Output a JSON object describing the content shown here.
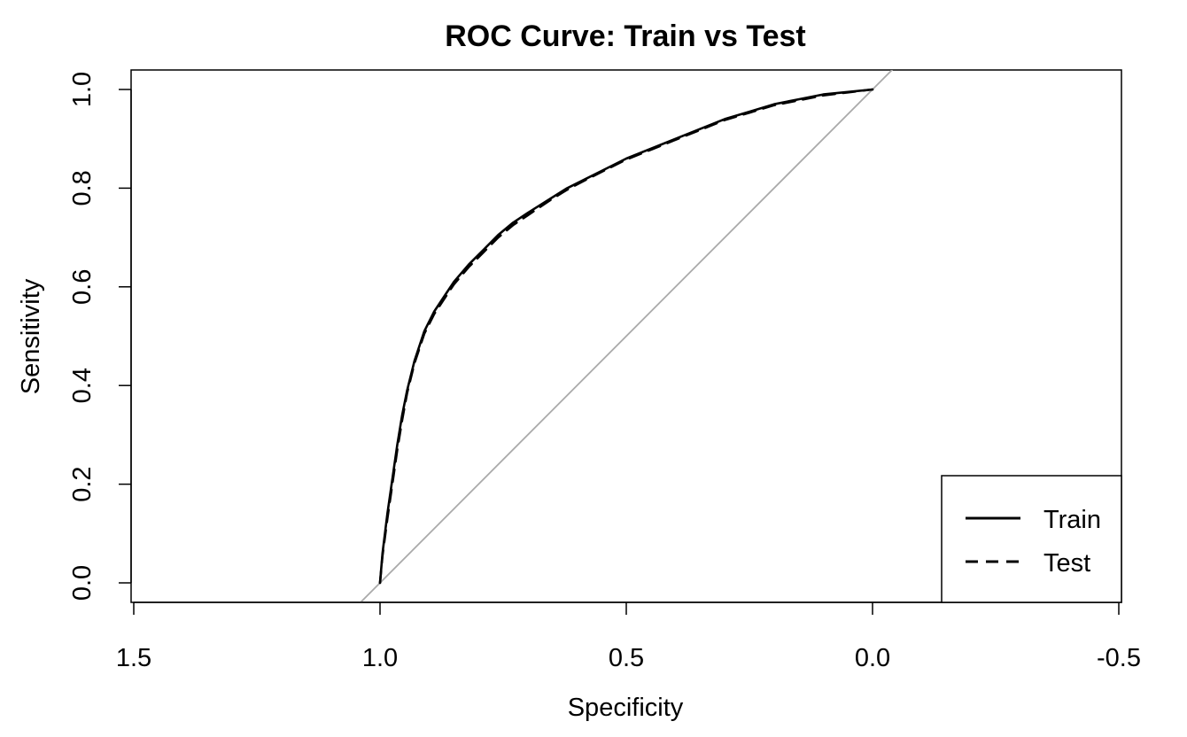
{
  "chart_data": {
    "type": "line",
    "title": "ROC Curve: Train vs Test",
    "xlabel": "Specificity",
    "ylabel": "Sensitivity",
    "xlim": [
      1.5,
      -0.5
    ],
    "ylim": [
      0.0,
      1.0
    ],
    "x_reversed": true,
    "x_ticks": [
      "1.5",
      "1.0",
      "0.5",
      "0.0",
      "-0.5"
    ],
    "y_ticks": [
      "0.0",
      "0.2",
      "0.4",
      "0.6",
      "0.8",
      "1.0"
    ],
    "grid": false,
    "legend_position": "bottom-right",
    "reference_line": {
      "from": [
        1.0,
        0.0
      ],
      "to": [
        0.0,
        1.0
      ],
      "color": "#aaaaaa"
    },
    "series": [
      {
        "name": "Train",
        "style": "solid",
        "color": "#000000",
        "x": [
          1.0,
          0.995,
          0.985,
          0.975,
          0.965,
          0.955,
          0.945,
          0.93,
          0.91,
          0.89,
          0.87,
          0.85,
          0.82,
          0.79,
          0.76,
          0.73,
          0.7,
          0.66,
          0.62,
          0.58,
          0.54,
          0.5,
          0.45,
          0.4,
          0.35,
          0.3,
          0.25,
          0.2,
          0.15,
          0.1,
          0.05,
          0.0
        ],
        "y": [
          0.0,
          0.06,
          0.14,
          0.21,
          0.28,
          0.34,
          0.39,
          0.45,
          0.51,
          0.55,
          0.58,
          0.61,
          0.645,
          0.675,
          0.705,
          0.73,
          0.75,
          0.775,
          0.8,
          0.82,
          0.84,
          0.86,
          0.88,
          0.9,
          0.92,
          0.94,
          0.955,
          0.97,
          0.98,
          0.99,
          0.995,
          1.0
        ]
      },
      {
        "name": "Test",
        "style": "dashed",
        "color": "#000000",
        "x": [
          1.0,
          0.995,
          0.985,
          0.975,
          0.965,
          0.955,
          0.945,
          0.93,
          0.91,
          0.89,
          0.87,
          0.85,
          0.82,
          0.79,
          0.76,
          0.73,
          0.7,
          0.66,
          0.62,
          0.58,
          0.54,
          0.5,
          0.45,
          0.4,
          0.35,
          0.3,
          0.25,
          0.2,
          0.15,
          0.1,
          0.05,
          0.0
        ],
        "y": [
          0.0,
          0.055,
          0.13,
          0.2,
          0.27,
          0.33,
          0.385,
          0.445,
          0.505,
          0.545,
          0.575,
          0.605,
          0.64,
          0.67,
          0.7,
          0.725,
          0.745,
          0.772,
          0.797,
          0.818,
          0.838,
          0.858,
          0.878,
          0.898,
          0.918,
          0.938,
          0.953,
          0.968,
          0.978,
          0.988,
          0.994,
          1.0
        ]
      }
    ]
  }
}
